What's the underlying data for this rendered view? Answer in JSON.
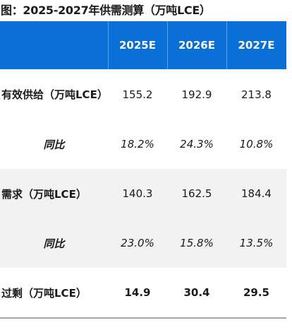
{
  "title": "图：2025-2027年供需测算（万吨LCE）",
  "table": {
    "headers": [
      "",
      "2025E",
      "2026E",
      "2027E"
    ],
    "rows": [
      {
        "label": "有效供给（万吨LCE）",
        "values": [
          "155.2",
          "192.9",
          "213.8"
        ]
      },
      {
        "label": "同比",
        "values": [
          "18.2%",
          "24.3%",
          "10.8%"
        ]
      },
      {
        "label": "需求（万吨LCE）",
        "values": [
          "140.3",
          "162.5",
          "184.4"
        ]
      },
      {
        "label": "同比",
        "values": [
          "23.0%",
          "15.8%",
          "13.5%"
        ]
      },
      {
        "label": "过剩（万吨LCE）",
        "values": [
          "14.9",
          "30.4",
          "29.5"
        ]
      }
    ]
  },
  "colors": {
    "header_bg": "#0a6fd6",
    "header_text": "#ffffff",
    "band_bg": "#f2f2f2"
  }
}
